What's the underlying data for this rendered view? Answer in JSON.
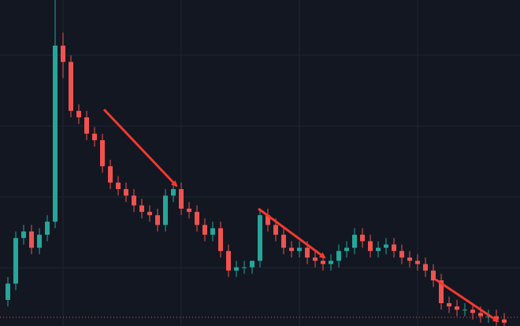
{
  "chart_data": {
    "type": "candlestick",
    "open": [
      8,
      13,
      27,
      29,
      24,
      28,
      32,
      86,
      81,
      66,
      64,
      59,
      57,
      49,
      44,
      42,
      40,
      37,
      35,
      34,
      31,
      40,
      42,
      36,
      35,
      31,
      28,
      30,
      23,
      17,
      18,
      18,
      20,
      34,
      31,
      28,
      24,
      23,
      24,
      21,
      20,
      19,
      20,
      23,
      24,
      28,
      26,
      23,
      24,
      25,
      23,
      21,
      20,
      19,
      17,
      14,
      7,
      6,
      5,
      5,
      4,
      3,
      3,
      2
    ],
    "high": [
      15,
      29,
      31,
      31,
      30,
      34,
      100,
      90,
      83,
      68,
      66,
      61,
      59,
      51,
      46,
      44,
      42,
      39,
      37,
      36,
      42,
      44,
      44,
      38,
      37,
      33,
      32,
      32,
      25,
      20,
      20,
      20,
      36,
      36,
      33,
      30,
      26,
      26,
      26,
      23,
      22,
      22,
      25,
      26,
      30,
      30,
      28,
      26,
      27,
      27,
      25,
      23,
      22,
      21,
      19,
      16,
      9,
      8,
      7,
      7,
      6,
      5,
      5,
      4
    ],
    "low": [
      6,
      11,
      25,
      22,
      22,
      26,
      30,
      76,
      64,
      62,
      57,
      55,
      47,
      42,
      40,
      38,
      35,
      33,
      32,
      29,
      29,
      38,
      34,
      33,
      29,
      26,
      26,
      21,
      15,
      15,
      16,
      16,
      18,
      29,
      26,
      22,
      21,
      21,
      19,
      18,
      17,
      17,
      18,
      21,
      22,
      24,
      21,
      21,
      22,
      21,
      19,
      18,
      17,
      15,
      12,
      5,
      4,
      3,
      3,
      2,
      1,
      1,
      0,
      0
    ],
    "close": [
      13,
      27,
      29,
      24,
      28,
      32,
      86,
      81,
      66,
      64,
      59,
      57,
      49,
      44,
      42,
      40,
      37,
      35,
      34,
      31,
      40,
      42,
      36,
      35,
      31,
      28,
      30,
      23,
      17,
      18,
      18,
      20,
      34,
      31,
      28,
      24,
      23,
      24,
      21,
      20,
      19,
      20,
      23,
      24,
      28,
      26,
      23,
      24,
      25,
      23,
      21,
      20,
      19,
      17,
      14,
      7,
      6,
      5,
      5,
      4,
      3,
      3,
      2,
      1
    ],
    "up_color": "#26a69a",
    "down_color": "#ef5350",
    "ylim": [
      0,
      100
    ]
  }
}
